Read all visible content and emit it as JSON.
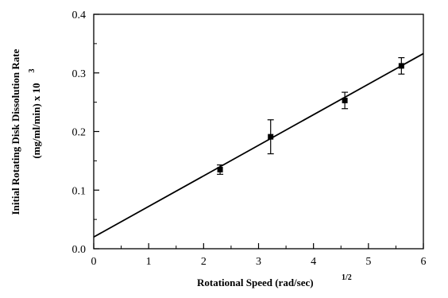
{
  "chart_data": {
    "type": "scatter",
    "title": "",
    "xlabel": "Rotational Speed (rad/sec)",
    "xlabel_superscript": "1/2",
    "ylabel_line1": "Initial Rotating Disk Dissolution Rate",
    "ylabel_line2": "(mg/ml/min) x 10",
    "ylabel_superscript": "3",
    "xlim": [
      0,
      6
    ],
    "ylim": [
      0.0,
      0.4
    ],
    "x_ticks": [
      "0",
      "1",
      "2",
      "3",
      "4",
      "5",
      "6"
    ],
    "y_ticks": [
      "0.0",
      "0.1",
      "0.2",
      "0.3",
      "0.4"
    ],
    "grid": false,
    "series": [
      {
        "marker": "square",
        "points": [
          {
            "x": 2.3,
            "y": 0.135,
            "err": 0.008
          },
          {
            "x": 3.22,
            "y": 0.191,
            "err": 0.029
          },
          {
            "x": 4.57,
            "y": 0.253,
            "err": 0.014
          },
          {
            "x": 5.6,
            "y": 0.312,
            "err": 0.014
          }
        ]
      }
    ],
    "fit_line": {
      "x": [
        0,
        6
      ],
      "y": [
        0.02,
        0.333
      ]
    }
  }
}
